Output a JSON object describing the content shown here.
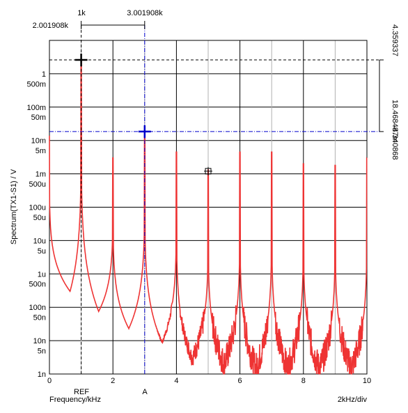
{
  "chart_data": {
    "type": "line",
    "xlabel": "Frequency/kHz",
    "ylabel": "Spectrum(TX1-S1) / V",
    "x_scale_label": "2kHz/div",
    "xlim": [
      0,
      10
    ],
    "ylim": [
      1e-09,
      10
    ],
    "yscale": "log",
    "x_ticks": [
      "0",
      "2",
      "4",
      "6",
      "8",
      "10"
    ],
    "y_tick_values": [
      1,
      0.5,
      0.1,
      0.05,
      0.01,
      0.005,
      0.001,
      0.0005,
      0.0001,
      5e-05,
      1e-05,
      5e-06,
      1e-06,
      5e-07,
      1e-07,
      5e-08,
      1e-08,
      5e-09,
      1e-09
    ],
    "y_tick_labels": [
      "1",
      "500m",
      "100m",
      "50m",
      "10m",
      "5m",
      "1m",
      "500u",
      "100u",
      "50u",
      "10u",
      "5u",
      "1u",
      "500n",
      "100n",
      "50n",
      "10n",
      "5n",
      "1n"
    ],
    "grid": true,
    "series": [
      {
        "color": "#ee3333",
        "peaks": [
          {
            "x": 1,
            "y": 2.6
          },
          {
            "x": 2,
            "y": 0.003
          },
          {
            "x": 3,
            "y": 0.0185
          },
          {
            "x": 4,
            "y": 0.0045
          },
          {
            "x": 5,
            "y": 0.0013
          },
          {
            "x": 6,
            "y": 0.0045
          },
          {
            "x": 7,
            "y": 0.0045
          },
          {
            "x": 8,
            "y": 0.002
          },
          {
            "x": 9,
            "y": 0.0018
          },
          {
            "x": 10,
            "y": 0.003
          }
        ],
        "valleys": [
          {
            "x": 0.65,
            "y": 3e-07
          },
          {
            "x": 1.55,
            "y": 7.5e-08
          },
          {
            "x": 2.5,
            "y": 2.3e-08
          },
          {
            "x": 3.55,
            "y": 9e-09
          },
          {
            "x": 4.5,
            "y": 3e-09
          },
          {
            "x": 5.5,
            "y": 2e-09
          },
          {
            "x": 6.5,
            "y": 1.5e-09
          },
          {
            "x": 7.5,
            "y": 1.5e-09
          },
          {
            "x": 8.5,
            "y": 1.5e-09
          },
          {
            "x": 9.5,
            "y": 1.5e-09
          }
        ]
      }
    ],
    "cursors": {
      "ref": {
        "label": "REF",
        "x": 1,
        "y": 2.6,
        "x_label": "1k",
        "offset_label": "2.001908k"
      },
      "a": {
        "label": "A",
        "x": 3,
        "y": 0.0185,
        "x_label": "3.001908k"
      },
      "marker": {
        "x": 5,
        "y": 0.0012
      }
    },
    "right_readout": {
      "ref_value": "4.359337",
      "diff_value": "18.468487m",
      "a_value": "-4.340868"
    },
    "colors": {
      "trace": "#ee3333",
      "ref_cursor": "#000000",
      "a_cursor": "#0000cc",
      "grid": "#000000",
      "minor_grid": "#b0b0b0"
    }
  }
}
